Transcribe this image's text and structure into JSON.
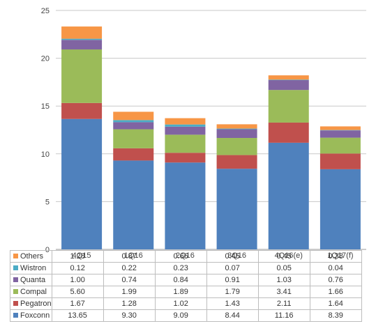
{
  "chart_data": {
    "type": "bar",
    "stacked": true,
    "categories": [
      "4Q15",
      "1Q16",
      "2Q16",
      "3Q16",
      "4Q16(e)",
      "1Q17(f)"
    ],
    "series": [
      {
        "name": "Foxconn",
        "color": "#4f81bd",
        "values": [
          13.65,
          9.3,
          9.09,
          8.44,
          11.16,
          8.39
        ]
      },
      {
        "name": "Pegatron",
        "color": "#c0504d",
        "values": [
          1.67,
          1.28,
          1.02,
          1.43,
          2.11,
          1.64
        ]
      },
      {
        "name": "Compal",
        "color": "#9bbb59",
        "values": [
          5.6,
          1.99,
          1.89,
          1.79,
          3.41,
          1.66
        ]
      },
      {
        "name": "Quanta",
        "color": "#8064a2",
        "values": [
          1.0,
          0.74,
          0.84,
          0.91,
          1.03,
          0.76
        ]
      },
      {
        "name": "Wistron",
        "color": "#4bacc6",
        "values": [
          0.12,
          0.22,
          0.23,
          0.07,
          0.05,
          0.04
        ]
      },
      {
        "name": "Others",
        "color": "#f79646",
        "values": [
          1.28,
          0.87,
          0.66,
          0.45,
          0.45,
          0.38
        ]
      }
    ],
    "value_labels": {
      "Foxconn": [
        "13.65",
        "9.30",
        "9.09",
        "8.44",
        "11.16",
        "8.39"
      ],
      "Pegatron": [
        "1.67",
        "1.28",
        "1.02",
        "1.43",
        "2.11",
        "1.64"
      ],
      "Compal": [
        "5.60",
        "1.99",
        "1.89",
        "1.79",
        "3.41",
        "1.66"
      ],
      "Quanta": [
        "1.00",
        "0.74",
        "0.84",
        "0.91",
        "1.03",
        "0.76"
      ],
      "Wistron": [
        "0.12",
        "0.22",
        "0.23",
        "0.07",
        "0.05",
        "0.04"
      ],
      "Others": [
        "1.28",
        "0.87",
        "0.66",
        "0.45",
        "0.45",
        "0.38"
      ]
    },
    "y_ticks": [
      "0",
      "5",
      "10",
      "15",
      "20",
      "25"
    ],
    "ylim": [
      0,
      25
    ],
    "grid": true,
    "legend": "data-table-below",
    "table_row_order": [
      "Others",
      "Wistron",
      "Quanta",
      "Compal",
      "Pegatron",
      "Foxconn"
    ]
  }
}
